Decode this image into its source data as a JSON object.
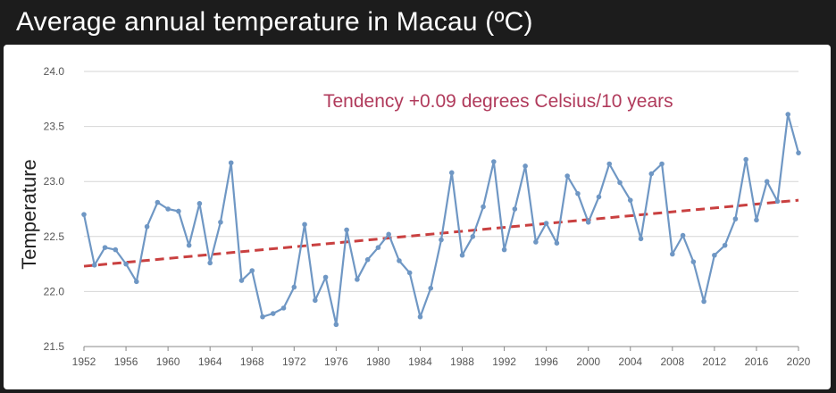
{
  "title": "Average annual temperature in Macau (ºC)",
  "chart_data": {
    "type": "line",
    "title": "Average annual temperature in Macau (ºC)",
    "ylabel": "Temperature",
    "xlabel": "",
    "annotation": "Tendency +0.09 degrees Celsius/10 years",
    "ylim": [
      21.5,
      24.0
    ],
    "xlim": [
      1952,
      2020
    ],
    "yticks": [
      "21.5",
      "22.0",
      "22.5",
      "23.0",
      "23.5",
      "24.0"
    ],
    "xticks": [
      "1952",
      "1956",
      "1960",
      "1964",
      "1968",
      "1972",
      "1976",
      "1980",
      "1984",
      "1988",
      "1992",
      "1996",
      "2000",
      "2004",
      "2008",
      "2012",
      "2016",
      "2020"
    ],
    "grid": true,
    "series": [
      {
        "type": "line",
        "color": "#6f97c4",
        "x": [
          1952,
          1953,
          1954,
          1955,
          1956,
          1957,
          1958,
          1959,
          1960,
          1961,
          1962,
          1963,
          1964,
          1965,
          1966,
          1967,
          1968,
          1969,
          1970,
          1971,
          1972,
          1973,
          1974,
          1975,
          1976,
          1977,
          1978,
          1979,
          1980,
          1981,
          1982,
          1983,
          1984,
          1985,
          1986,
          1987,
          1988,
          1989,
          1990,
          1991,
          1992,
          1993,
          1994,
          1995,
          1996,
          1997,
          1998,
          1999,
          2000,
          2001,
          2002,
          2003,
          2004,
          2005,
          2006,
          2007,
          2008,
          2009,
          2010,
          2011,
          2012,
          2013,
          2014,
          2015,
          2016,
          2017,
          2018,
          2019,
          2020
        ],
        "values": [
          22.7,
          22.24,
          22.4,
          22.38,
          22.25,
          22.09,
          22.59,
          22.81,
          22.75,
          22.73,
          22.42,
          22.8,
          22.26,
          22.63,
          23.17,
          22.1,
          22.19,
          21.77,
          21.8,
          21.85,
          22.04,
          22.61,
          21.92,
          22.13,
          21.7,
          22.56,
          22.11,
          22.29,
          22.4,
          22.52,
          22.28,
          22.17,
          21.77,
          22.03,
          22.47,
          23.08,
          22.33,
          22.5,
          22.77,
          23.18,
          22.38,
          22.75,
          23.14,
          22.45,
          22.62,
          22.44,
          23.05,
          22.89,
          22.63,
          22.86,
          23.16,
          22.99,
          22.83,
          22.48,
          23.07,
          23.16,
          22.34,
          22.51,
          22.27,
          21.91,
          22.33,
          22.42,
          22.66,
          23.2,
          22.65,
          23.0,
          22.82,
          23.61,
          23.26
        ]
      },
      {
        "type": "trend",
        "color": "#c94040",
        "x": [
          1952,
          2020
        ],
        "values": [
          22.23,
          22.83
        ]
      }
    ]
  }
}
